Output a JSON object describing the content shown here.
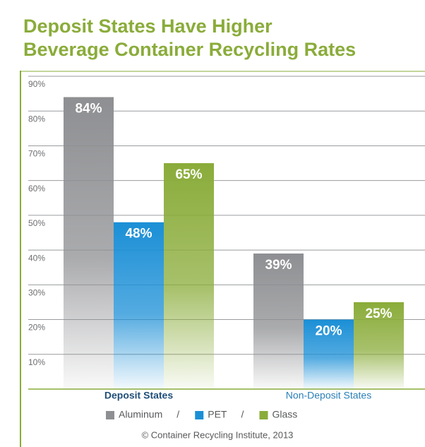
{
  "chart_data": {
    "type": "bar",
    "title": [
      "Deposit States Have Higher",
      "Beverage Container Recycling Rates"
    ],
    "categories": [
      "Deposit States",
      "Non-Deposit States"
    ],
    "series": [
      {
        "name": "Aluminum",
        "color": "#8e8f92",
        "values": [
          84,
          39
        ],
        "value_labels": [
          "84%",
          "39%"
        ]
      },
      {
        "name": "PET",
        "color": "#1b8fd6",
        "values": [
          48,
          20
        ],
        "value_labels": [
          "48%",
          "20%"
        ]
      },
      {
        "name": "Glass",
        "color": "#8aac3a",
        "values": [
          65,
          25
        ],
        "value_labels": [
          "65%",
          "25%"
        ]
      }
    ],
    "ylim": [
      0,
      90
    ],
    "yticks": [
      {
        "value": 10,
        "label": "10%"
      },
      {
        "value": 20,
        "label": "20%"
      },
      {
        "value": 30,
        "label": "30%"
      },
      {
        "value": 40,
        "label": "40%"
      },
      {
        "value": 50,
        "label": "50%"
      },
      {
        "value": 60,
        "label": "60%"
      },
      {
        "value": 70,
        "label": "70%"
      },
      {
        "value": 80,
        "label": "80%"
      },
      {
        "value": 90,
        "label": "90%"
      }
    ],
    "grid": true,
    "legend_separator": "/",
    "source": "© Container Recycling Institute, 2013"
  }
}
